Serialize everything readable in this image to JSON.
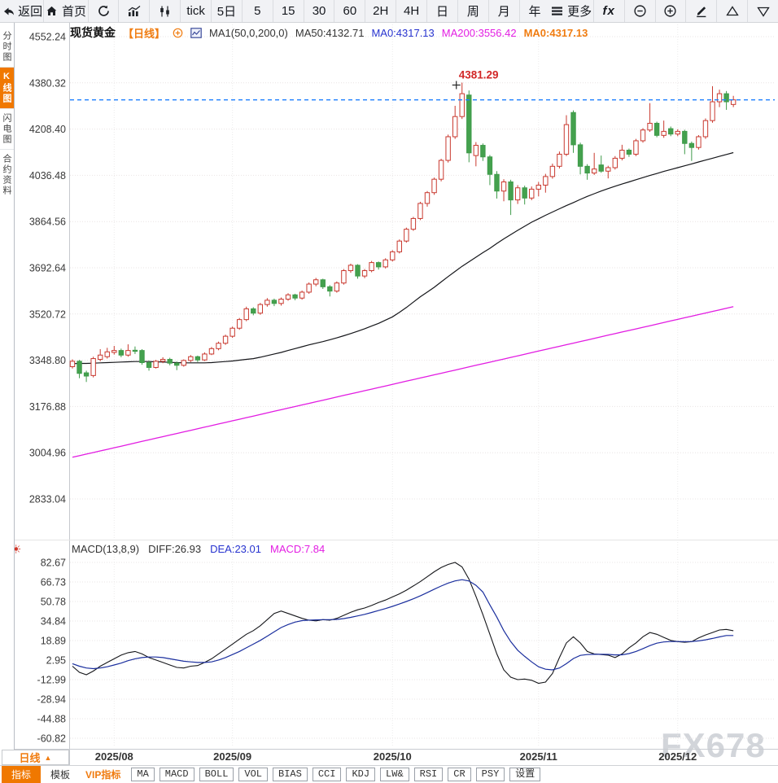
{
  "toolbar": {
    "back_label": "返回",
    "home_label": "首页",
    "periods": [
      "tick",
      "5日",
      "5",
      "15",
      "30",
      "60",
      "2H",
      "4H",
      "日",
      "周",
      "月",
      "年"
    ],
    "more_label": "更多",
    "fx_label": "fx",
    "icons": [
      "back-arrow",
      "home",
      "refresh",
      "bar-chart",
      "candlestick",
      "menu",
      "formula",
      "zoom-out",
      "zoom-in",
      "pencil",
      "triangle-up",
      "triangle-down"
    ]
  },
  "sidebar": {
    "items": [
      {
        "label": "分时图",
        "active": false
      },
      {
        "label": "K线图",
        "active": true
      },
      {
        "label": "闪电图",
        "active": false
      },
      {
        "label": "合约资料",
        "active": false
      }
    ]
  },
  "chart_header": {
    "symbol": "现货黄金",
    "period_tag": "【日线】",
    "ma_settings": "MA1(50,0,200,0)",
    "ma50": "MA50:4132.71",
    "ma0_current": "MA0:4317.13",
    "ma200": "MA200:3556.42",
    "ma0_alt": "MA0:4317.13"
  },
  "macd_header": {
    "label": "MACD(13,8,9)",
    "diff": "DIFF:26.93",
    "dea": "DEA:23.01",
    "macd": "MACD:7.84"
  },
  "bottom": {
    "period_label": "日线",
    "up_triangle": "▲",
    "tab_indicator": "指标",
    "tab_template": "模板",
    "tab_vip": "VIP指标",
    "indicator_tabs": [
      "MA",
      "MACD",
      "BOLL",
      "VOL",
      "BIAS",
      "CCI",
      "KDJ",
      "LW&",
      "RSI",
      "CR",
      "PSY",
      "设置"
    ],
    "watermark": "FX678"
  },
  "chart_data": {
    "type": "candlestick",
    "title": "现货黄金 日线",
    "y_axis_main": [
      4552.24,
      4380.32,
      4208.4,
      4036.48,
      3864.56,
      3692.64,
      3520.72,
      3348.8,
      3176.88,
      3004.96,
      2833.04
    ],
    "y_axis_macd": [
      82.67,
      66.73,
      50.78,
      34.84,
      18.89,
      2.95,
      -12.99,
      -28.94,
      -44.88,
      -60.82
    ],
    "x_ticks": [
      {
        "label": "2025/08",
        "i": 6
      },
      {
        "label": "2025/09",
        "i": 23
      },
      {
        "label": "2025/10",
        "i": 46
      },
      {
        "label": "2025/11",
        "i": 67
      },
      {
        "label": "2025/12",
        "i": 87
      }
    ],
    "current_price": 4317.13,
    "annotation": {
      "label": "4381.29",
      "index": 56,
      "price": 4381.29
    },
    "colors": {
      "up": "#c9392f",
      "down": "#3f9b4a",
      "down_fill": "#44a14e",
      "ma50": "#15161a",
      "ma200": "#e21ce2",
      "diff": "#15161a",
      "dea": "#1b2f9e",
      "price_line": "#1e80ff",
      "accent_orange": "#f07800",
      "annotation_red": "#d22727"
    },
    "candles": [
      [
        3325,
        3352,
        3318,
        3345
      ],
      [
        3345,
        3350,
        3282,
        3300
      ],
      [
        3302,
        3310,
        3268,
        3290
      ],
      [
        3292,
        3362,
        3285,
        3355
      ],
      [
        3352,
        3390,
        3345,
        3368
      ],
      [
        3362,
        3395,
        3355,
        3380
      ],
      [
        3378,
        3402,
        3370,
        3385
      ],
      [
        3385,
        3392,
        3360,
        3368
      ],
      [
        3368,
        3408,
        3362,
        3385
      ],
      [
        3386,
        3400,
        3372,
        3382
      ],
      [
        3385,
        3390,
        3332,
        3340
      ],
      [
        3340,
        3348,
        3310,
        3322
      ],
      [
        3322,
        3350,
        3318,
        3345
      ],
      [
        3345,
        3360,
        3338,
        3352
      ],
      [
        3352,
        3358,
        3330,
        3338
      ],
      [
        3338,
        3344,
        3312,
        3330
      ],
      [
        3330,
        3352,
        3325,
        3348
      ],
      [
        3348,
        3368,
        3342,
        3362
      ],
      [
        3362,
        3366,
        3342,
        3350
      ],
      [
        3350,
        3378,
        3346,
        3372
      ],
      [
        3372,
        3398,
        3368,
        3392
      ],
      [
        3392,
        3418,
        3386,
        3412
      ],
      [
        3412,
        3444,
        3406,
        3438
      ],
      [
        3438,
        3474,
        3432,
        3468
      ],
      [
        3468,
        3506,
        3462,
        3500
      ],
      [
        3500,
        3548,
        3494,
        3540
      ],
      [
        3540,
        3546,
        3516,
        3524
      ],
      [
        3524,
        3562,
        3518,
        3556
      ],
      [
        3556,
        3580,
        3548,
        3572
      ],
      [
        3572,
        3578,
        3550,
        3560
      ],
      [
        3560,
        3582,
        3552,
        3576
      ],
      [
        3576,
        3598,
        3570,
        3592
      ],
      [
        3592,
        3596,
        3572,
        3580
      ],
      [
        3580,
        3608,
        3574,
        3602
      ],
      [
        3602,
        3638,
        3596,
        3632
      ],
      [
        3632,
        3655,
        3624,
        3648
      ],
      [
        3648,
        3652,
        3614,
        3622
      ],
      [
        3622,
        3628,
        3586,
        3606
      ],
      [
        3606,
        3642,
        3600,
        3636
      ],
      [
        3636,
        3688,
        3630,
        3682
      ],
      [
        3682,
        3708,
        3674,
        3702
      ],
      [
        3702,
        3706,
        3652,
        3662
      ],
      [
        3662,
        3688,
        3654,
        3682
      ],
      [
        3682,
        3718,
        3676,
        3712
      ],
      [
        3712,
        3716,
        3686,
        3696
      ],
      [
        3696,
        3728,
        3690,
        3722
      ],
      [
        3722,
        3758,
        3716,
        3752
      ],
      [
        3752,
        3798,
        3746,
        3792
      ],
      [
        3792,
        3842,
        3786,
        3836
      ],
      [
        3836,
        3882,
        3830,
        3876
      ],
      [
        3876,
        3938,
        3870,
        3932
      ],
      [
        3932,
        3978,
        3920,
        3972
      ],
      [
        3972,
        4028,
        3964,
        4022
      ],
      [
        4022,
        4098,
        4014,
        4092
      ],
      [
        4092,
        4188,
        4084,
        4180
      ],
      [
        4180,
        4295,
        4172,
        4255
      ],
      [
        4255,
        4381.29,
        4246,
        4340
      ],
      [
        4335,
        4352,
        4085,
        4120
      ],
      [
        4110,
        4160,
        4070,
        4148
      ],
      [
        4148,
        4155,
        4090,
        4105
      ],
      [
        4105,
        4112,
        4000,
        4040
      ],
      [
        4040,
        4052,
        3950,
        3978
      ],
      [
        3978,
        4022,
        3940,
        4012
      ],
      [
        4012,
        4020,
        3889,
        3945
      ],
      [
        3945,
        4000,
        3930,
        3990
      ],
      [
        3990,
        3998,
        3928,
        3952
      ],
      [
        3952,
        3995,
        3944,
        3985
      ],
      [
        3985,
        4012,
        3958,
        4000
      ],
      [
        4000,
        4042,
        3972,
        4032
      ],
      [
        4032,
        4080,
        4024,
        4070
      ],
      [
        4070,
        4125,
        4062,
        4115
      ],
      [
        4115,
        4260,
        4108,
        4225
      ],
      [
        4270,
        4278,
        4120,
        4150
      ],
      [
        4150,
        4158,
        4040,
        4070
      ],
      [
        4070,
        4078,
        4020,
        4045
      ],
      [
        4045,
        4120,
        4038,
        4060
      ],
      [
        4075,
        4110,
        4046,
        4052
      ],
      [
        4052,
        4072,
        4025,
        4065
      ],
      [
        4065,
        4108,
        4058,
        4100
      ],
      [
        4100,
        4150,
        4092,
        4130
      ],
      [
        4130,
        4136,
        4105,
        4115
      ],
      [
        4115,
        4172,
        4108,
        4165
      ],
      [
        4165,
        4212,
        4158,
        4205
      ],
      [
        4205,
        4305,
        4198,
        4230
      ],
      [
        4230,
        4236,
        4178,
        4185
      ],
      [
        4185,
        4240,
        4176,
        4200
      ],
      [
        4210,
        4218,
        4182,
        4190
      ],
      [
        4190,
        4208,
        4182,
        4200
      ],
      [
        4200,
        4206,
        4115,
        4155
      ],
      [
        4155,
        4162,
        4090,
        4140
      ],
      [
        4140,
        4186,
        4132,
        4180
      ],
      [
        4180,
        4248,
        4172,
        4240
      ],
      [
        4240,
        4368,
        4232,
        4310
      ],
      [
        4310,
        4355,
        4290,
        4340
      ],
      [
        4340,
        4350,
        4280,
        4310
      ],
      [
        4300,
        4332,
        4290,
        4317.13
      ]
    ],
    "ma50": [
      3336,
      3337,
      3337,
      3338,
      3339,
      3340,
      3341,
      3342,
      3343,
      3344,
      3344,
      3344,
      3343,
      3342,
      3341,
      3340,
      3339,
      3339,
      3339,
      3339,
      3340,
      3342,
      3344,
      3346,
      3349,
      3352,
      3355,
      3360,
      3366,
      3372,
      3378,
      3385,
      3392,
      3399,
      3406,
      3412,
      3418,
      3425,
      3432,
      3440,
      3448,
      3457,
      3466,
      3476,
      3486,
      3498,
      3510,
      3527,
      3545,
      3565,
      3585,
      3602,
      3620,
      3640,
      3660,
      3679,
      3698,
      3715,
      3732,
      3749,
      3765,
      3783,
      3800,
      3816,
      3832,
      3847,
      3862,
      3875,
      3888,
      3900,
      3912,
      3924,
      3935,
      3947,
      3958,
      3968,
      3978,
      3987,
      3996,
      4004,
      4012,
      4020,
      4028,
      4036,
      4043,
      4051,
      4058,
      4065,
      4072,
      4079,
      4086,
      4093,
      4100,
      4107,
      4114,
      4121
    ],
    "ma200": {
      "start": 2988,
      "end": 3548
    },
    "macd": {
      "diff": [
        -2,
        -7,
        -9,
        -6,
        -2,
        1,
        4,
        7,
        9,
        10,
        8,
        5,
        3,
        1,
        -1,
        -3,
        -3.5,
        -2,
        -1.5,
        1,
        4,
        8,
        12,
        16,
        20,
        24,
        27,
        31,
        36,
        41,
        43,
        41,
        39,
        37,
        35.5,
        35,
        36,
        35.5,
        37,
        39.5,
        42,
        44,
        45.5,
        47.5,
        50,
        52,
        54.5,
        57,
        60,
        63.5,
        67,
        71,
        75,
        78.5,
        81,
        82.7,
        79,
        69,
        55,
        40,
        24,
        8,
        -5,
        -11,
        -13,
        -12.5,
        -13.5,
        -16,
        -15,
        -8,
        5,
        17,
        22,
        17,
        10,
        8,
        7.5,
        7,
        5,
        8,
        13,
        17,
        22,
        25.5,
        24,
        21.5,
        19,
        18,
        17.5,
        18,
        21,
        23.5,
        25.5,
        27.5,
        28,
        26.93
      ],
      "dea": [
        0,
        -2,
        -3.5,
        -4,
        -3.5,
        -2.5,
        -1,
        0.5,
        2.5,
        4,
        5,
        5.5,
        5.5,
        5,
        4,
        3,
        2,
        1.5,
        1,
        1,
        1.5,
        3,
        5,
        7.5,
        10,
        13,
        16,
        19,
        22.5,
        26,
        29.5,
        32,
        34,
        35.2,
        35.6,
        35.8,
        36,
        36,
        36.2,
        36.8,
        37.8,
        39,
        40.3,
        41.8,
        43.4,
        45,
        46.8,
        48.7,
        50.8,
        53,
        55.4,
        58,
        60.8,
        63.4,
        65.8,
        67.6,
        68.6,
        67.5,
        64,
        58.5,
        48,
        38,
        27,
        18,
        11,
        6,
        1.5,
        -2.5,
        -4.5,
        -5,
        -3.5,
        0,
        4.2,
        6.8,
        7.5,
        7.7,
        7.7,
        7.6,
        7.2,
        7.3,
        8.3,
        10,
        12.3,
        14.8,
        16.8,
        17.8,
        18.1,
        18.1,
        18,
        18.1,
        18.6,
        19.5,
        20.6,
        21.9,
        23,
        23.01
      ],
      "hist_extra": [
        10,
        16,
        21,
        14,
        12,
        16
      ]
    }
  }
}
